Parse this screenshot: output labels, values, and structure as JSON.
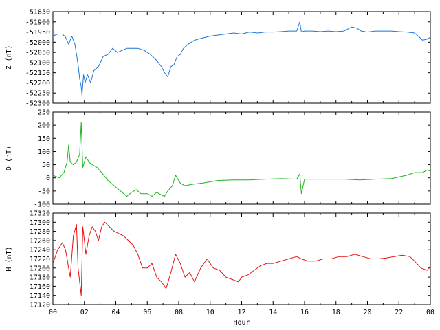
{
  "chart_data": [
    {
      "type": "line",
      "ylabel": "Z (nT)",
      "color": "#1a75d6",
      "xlim": [
        0,
        24
      ],
      "ylim": [
        -52300,
        -51850
      ],
      "yticks": [
        -51850,
        -51900,
        -51950,
        -52000,
        -52050,
        -52100,
        -52150,
        -52200,
        -52250,
        -52300
      ],
      "series": [
        {
          "x": [
            0,
            0.3,
            0.6,
            0.8,
            1.0,
            1.1,
            1.2,
            1.4,
            1.6,
            1.7,
            1.8,
            1.85,
            1.95,
            2.05,
            2.2,
            2.4,
            2.6,
            2.9,
            3.2,
            3.5,
            3.8,
            4.1,
            4.4,
            4.7,
            5.0,
            5.4,
            5.8,
            6.2,
            6.6,
            6.9,
            7.1,
            7.3,
            7.5,
            7.7,
            7.9,
            8.1,
            8.3,
            8.6,
            9.0,
            9.5,
            10.0,
            10.5,
            11.0,
            11.5,
            12.0,
            12.5,
            13.0,
            13.5,
            14.0,
            14.5,
            15.0,
            15.5,
            15.7,
            15.8,
            16.0,
            16.5,
            17.0,
            17.5,
            18.0,
            18.5,
            19.0,
            19.3,
            19.6,
            20.0,
            20.5,
            21.0,
            21.5,
            22.0,
            22.5,
            23.0,
            23.3,
            23.5,
            23.8,
            24.0
          ],
          "y": [
            -51970,
            -51960,
            -51960,
            -51975,
            -52010,
            -51990,
            -51970,
            -52010,
            -52110,
            -52180,
            -52220,
            -52260,
            -52160,
            -52200,
            -52160,
            -52200,
            -52140,
            -52120,
            -52070,
            -52060,
            -52030,
            -52050,
            -52040,
            -52030,
            -52030,
            -52030,
            -52040,
            -52060,
            -52090,
            -52120,
            -52150,
            -52170,
            -52120,
            -52110,
            -52070,
            -52060,
            -52030,
            -52010,
            -51990,
            -51980,
            -51970,
            -51965,
            -51960,
            -51955,
            -51960,
            -51950,
            -51955,
            -51950,
            -51950,
            -51948,
            -51945,
            -51945,
            -51900,
            -51950,
            -51945,
            -51945,
            -51948,
            -51945,
            -51948,
            -51945,
            -51925,
            -51930,
            -51945,
            -51950,
            -51945,
            -51945,
            -51945,
            -51948,
            -51950,
            -51955,
            -51975,
            -51990,
            -51985,
            -51975
          ]
        }
      ]
    },
    {
      "type": "line",
      "ylabel": "D (nT)",
      "color": "#1ab31a",
      "xlim": [
        0,
        24
      ],
      "ylim": [
        -100,
        250
      ],
      "yticks": [
        250,
        200,
        150,
        100,
        50,
        0,
        -50,
        -100
      ],
      "series": [
        {
          "x": [
            0,
            0.4,
            0.7,
            0.9,
            1.0,
            1.1,
            1.3,
            1.5,
            1.7,
            1.8,
            1.9,
            2.1,
            2.3,
            2.5,
            2.8,
            3.1,
            3.5,
            3.9,
            4.3,
            4.7,
            5.0,
            5.3,
            5.6,
            6.0,
            6.3,
            6.6,
            6.9,
            7.1,
            7.3,
            7.6,
            7.8,
            8.1,
            8.4,
            8.8,
            9.5,
            10.5,
            11.5,
            12.5,
            13.5,
            14.5,
            15.5,
            15.7,
            15.8,
            16.0,
            16.5,
            17.5,
            18.5,
            19.5,
            20.5,
            21.5,
            22.5,
            23.0,
            23.5,
            23.8,
            24.0
          ],
          "y": [
            10,
            0,
            20,
            60,
            125,
            60,
            50,
            60,
            90,
            210,
            40,
            80,
            60,
            50,
            40,
            20,
            -10,
            -30,
            -50,
            -70,
            -55,
            -45,
            -60,
            -60,
            -70,
            -55,
            -65,
            -70,
            -50,
            -30,
            10,
            -20,
            -30,
            -25,
            -20,
            -10,
            -8,
            -8,
            -5,
            -3,
            -5,
            15,
            -60,
            -5,
            -5,
            -5,
            -5,
            -8,
            -5,
            -3,
            10,
            20,
            20,
            30,
            25
          ]
        }
      ]
    },
    {
      "type": "line",
      "ylabel": "H (nT)",
      "xlabel": "Hour",
      "color": "#e81010",
      "xlim": [
        0,
        24
      ],
      "ylim": [
        17120,
        17320
      ],
      "yticks": [
        17320,
        17300,
        17280,
        17260,
        17240,
        17220,
        17200,
        17180,
        17160,
        17140,
        17120
      ],
      "xticks": [
        "00",
        "02",
        "04",
        "06",
        "08",
        "10",
        "12",
        "14",
        "16",
        "18",
        "20",
        "22",
        "00"
      ],
      "series": [
        {
          "x": [
            0,
            0.3,
            0.6,
            0.8,
            1.0,
            1.1,
            1.3,
            1.5,
            1.6,
            1.8,
            1.9,
            2.1,
            2.3,
            2.5,
            2.7,
            2.9,
            3.1,
            3.3,
            3.6,
            3.9,
            4.2,
            4.5,
            4.8,
            5.1,
            5.4,
            5.7,
            6.0,
            6.3,
            6.6,
            6.9,
            7.2,
            7.5,
            7.8,
            8.1,
            8.4,
            8.7,
            9.0,
            9.4,
            9.8,
            10.2,
            10.6,
            11.0,
            11.4,
            11.8,
            12.0,
            12.4,
            12.8,
            13.2,
            13.6,
            14.0,
            14.5,
            15.0,
            15.5,
            15.8,
            16.2,
            16.7,
            17.2,
            17.7,
            18.2,
            18.7,
            19.2,
            19.7,
            20.2,
            20.7,
            21.2,
            21.7,
            22.2,
            22.7,
            23.0,
            23.4,
            23.8,
            24.0
          ],
          "y": [
            17210,
            17240,
            17255,
            17240,
            17200,
            17180,
            17270,
            17295,
            17200,
            17140,
            17290,
            17230,
            17270,
            17290,
            17280,
            17260,
            17290,
            17300,
            17290,
            17280,
            17275,
            17270,
            17260,
            17250,
            17230,
            17200,
            17200,
            17210,
            17180,
            17170,
            17155,
            17190,
            17230,
            17210,
            17180,
            17190,
            17170,
            17200,
            17220,
            17200,
            17195,
            17180,
            17175,
            17170,
            17180,
            17185,
            17195,
            17205,
            17210,
            17210,
            17215,
            17220,
            17225,
            17220,
            17215,
            17215,
            17220,
            17220,
            17225,
            17225,
            17230,
            17225,
            17220,
            17220,
            17222,
            17225,
            17228,
            17225,
            17215,
            17200,
            17195,
            17205
          ]
        }
      ]
    }
  ]
}
